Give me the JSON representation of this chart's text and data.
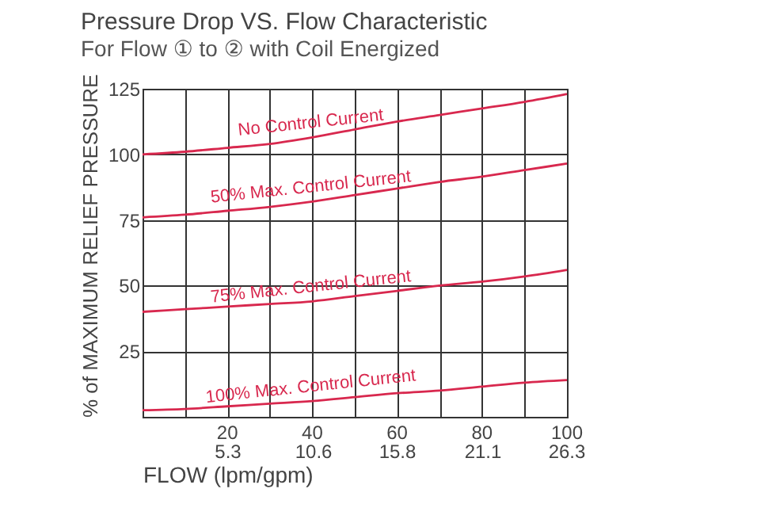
{
  "chart_data": {
    "type": "line",
    "title": "Pressure Drop VS. Flow Characteristic",
    "subtitle": "For Flow ① to ② with Coil Energized",
    "xlabel": "FLOW (lpm/gpm)",
    "ylabel": "% of MAXIMUM RELIEF PRESSURE",
    "x": [
      0,
      10,
      20,
      30,
      40,
      50,
      60,
      70,
      80,
      90,
      100
    ],
    "series": [
      {
        "name": "No Control Current",
        "color": "#d8284e",
        "values": [
          100,
          101,
          102.5,
          104,
          106.5,
          109.5,
          112.5,
          115,
          117.5,
          120,
          123
        ]
      },
      {
        "name": "50% Max. Control Current",
        "color": "#d8284e",
        "values": [
          76,
          77,
          78.5,
          80,
          82,
          84.5,
          87,
          89.5,
          91.5,
          94,
          96.5
        ]
      },
      {
        "name": "75% Max. Control Current",
        "color": "#d8284e",
        "values": [
          40,
          41,
          42,
          43,
          44,
          46,
          48,
          50,
          51.5,
          53.5,
          56
        ]
      },
      {
        "name": "100% Max. Control Current",
        "color": "#d8284e",
        "values": [
          2.5,
          3,
          4,
          5,
          6,
          7.5,
          9,
          10,
          11.5,
          13,
          14
        ]
      }
    ],
    "xlim": [
      0,
      100
    ],
    "ylim": [
      0,
      125
    ],
    "xticks": [
      {
        "value": 10,
        "label": null
      },
      20,
      {
        "value": 30,
        "label": null
      },
      40,
      {
        "value": 50,
        "label": null
      },
      60,
      {
        "value": 70,
        "label": null
      },
      80,
      {
        "value": 90,
        "label": null
      },
      100
    ],
    "x2lim": [
      0,
      26.3
    ],
    "x2ticks": [
      5.3,
      10.6,
      15.8,
      21.1,
      26.3
    ],
    "yticks": [
      25,
      50,
      75,
      100,
      125
    ],
    "grid": true,
    "legend": false,
    "marker": "none",
    "line_style": "solid"
  }
}
